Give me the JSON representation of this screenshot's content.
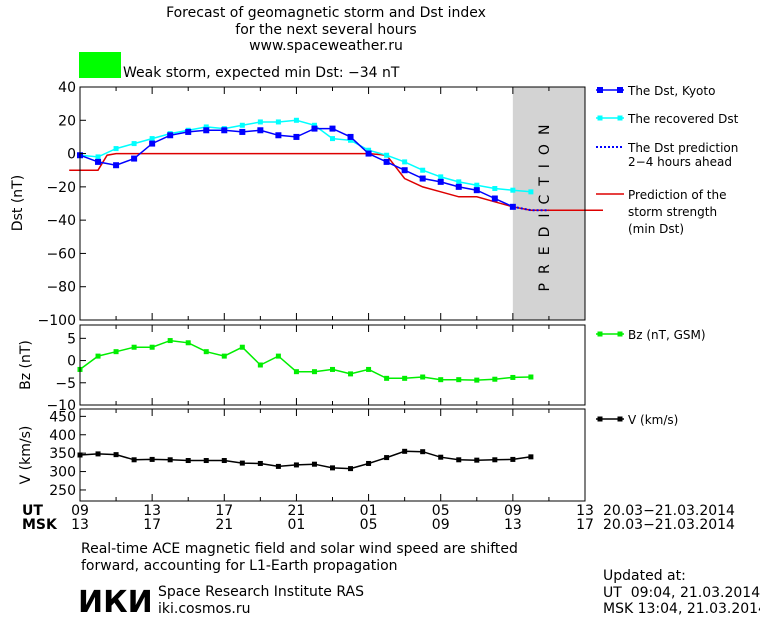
{
  "header": {
    "title_lines": [
      "Forecast of geomagnetic storm and Dst index",
      "for the next several hours",
      "www.spaceweather.ru"
    ],
    "storm_status": "Weak storm, expected min Dst: −34 nT",
    "storm_color": "#00ff00"
  },
  "colors": {
    "dst_kyoto": "#0000ff",
    "dst_recovered": "#00ffff",
    "dst_prediction": "#0000ff",
    "storm_strength": "#dd0000",
    "bz": "#00ee00",
    "v": "#000000",
    "prediction_band": "#d3d3d3"
  },
  "prediction_label": "PREDICTION",
  "x_axis": {
    "ut_label": "UT",
    "msk_label": "MSK",
    "ut_ticks": [
      "09",
      "13",
      "17",
      "21",
      "01",
      "05",
      "09",
      "13"
    ],
    "msk_ticks": [
      "13",
      "17",
      "21",
      "01",
      "05",
      "09",
      "13",
      "17"
    ],
    "ut_range": "20.03−21.03.2014",
    "msk_range": "20.03−21.03.2014",
    "hours_start": 0,
    "hours_end": 28
  },
  "chart_data": [
    {
      "type": "line",
      "ylabel": "Dst (nT)",
      "ylim": [
        -100,
        40
      ],
      "yticks": [
        40,
        20,
        0,
        -20,
        -40,
        -60,
        -80,
        -100
      ],
      "prediction_start_hour": 24,
      "series": [
        {
          "name": "The Dst, Kyoto",
          "x": [
            0,
            1,
            2,
            3,
            4,
            5,
            6,
            7,
            8,
            9,
            10,
            11,
            12,
            13,
            14,
            15,
            16,
            17,
            18,
            19,
            20,
            21,
            22,
            23,
            24
          ],
          "values": [
            -1,
            -5,
            -7,
            -3,
            6,
            11,
            13,
            14,
            14,
            13,
            14,
            11,
            10,
            15,
            15,
            10,
            0,
            -5,
            -10,
            -15,
            -17,
            -20,
            -22,
            -27,
            -32
          ]
        },
        {
          "name": "The recovered Dst",
          "x": [
            0,
            1,
            2,
            3,
            4,
            5,
            6,
            7,
            8,
            9,
            10,
            11,
            12,
            13,
            14,
            15,
            16,
            17,
            18,
            19,
            20,
            21,
            22,
            23,
            24,
            25
          ],
          "values": [
            -1,
            -2,
            3,
            6,
            9,
            12,
            14,
            16,
            15,
            17,
            19,
            19,
            20,
            17,
            9,
            8,
            2,
            -1,
            -5,
            -10,
            -14,
            -17,
            -19,
            -21,
            -22,
            -23
          ]
        },
        {
          "name": "The Dst prediction 2−4 hours ahead",
          "x": [
            24,
            25,
            26
          ],
          "values": [
            -32,
            -34,
            -34
          ]
        },
        {
          "name": "Prediction of the storm strength (min Dst)",
          "x": [
            -0.6,
            1,
            1.5,
            2,
            16,
            17,
            18,
            19,
            20,
            21,
            22,
            23,
            24,
            25,
            29
          ],
          "values": [
            -10,
            -10,
            -1,
            0,
            0,
            -1,
            -15,
            -20,
            -23,
            -26,
            -26,
            -29,
            -32,
            -34,
            -34
          ]
        }
      ]
    },
    {
      "type": "line",
      "ylabel": "Bz (nT)",
      "ylim": [
        -10,
        8
      ],
      "yticks": [
        5,
        0,
        -5,
        -10
      ],
      "series": [
        {
          "name": "Bz (nT, GSM)",
          "x": [
            0,
            1,
            2,
            3,
            4,
            5,
            6,
            7,
            8,
            9,
            10,
            11,
            12,
            13,
            14,
            15,
            16,
            17,
            18,
            19,
            20,
            21,
            22,
            23,
            24,
            25
          ],
          "values": [
            -2,
            1,
            2,
            3,
            3,
            4.5,
            4,
            2,
            1,
            3,
            -1,
            1,
            -2.5,
            -2.5,
            -2,
            -3,
            -2,
            -4,
            -4,
            -3.7,
            -4.3,
            -4.3,
            -4.4,
            -4.2,
            -3.8,
            -3.7
          ]
        }
      ]
    },
    {
      "type": "line",
      "ylabel": "V (km/s)",
      "ylim": [
        220,
        470
      ],
      "yticks": [
        450,
        400,
        350,
        300,
        250
      ],
      "series": [
        {
          "name": "V (km/s)",
          "x": [
            0,
            1,
            2,
            3,
            4,
            5,
            6,
            7,
            8,
            9,
            10,
            11,
            12,
            13,
            14,
            15,
            16,
            17,
            18,
            19,
            20,
            21,
            22,
            23,
            24,
            25
          ],
          "values": [
            345,
            348,
            346,
            332,
            333,
            332,
            330,
            330,
            330,
            323,
            322,
            314,
            318,
            320,
            310,
            308,
            322,
            338,
            355,
            354,
            339,
            332,
            331,
            332,
            333,
            340
          ]
        }
      ]
    }
  ],
  "footer": {
    "note_line1": "Real-time ACE magnetic field and solar wind speed are shifted",
    "note_line2": "forward, accounting for L1-Earth propagation",
    "logo": "ИКИ",
    "institute": "Space Research Institute RAS",
    "site": "iki.cosmos.ru",
    "updated_label": "Updated at:",
    "updated_ut": "UT  09:04, 21.03.2014",
    "updated_msk": "MSK 13:04, 21.03.2014"
  }
}
